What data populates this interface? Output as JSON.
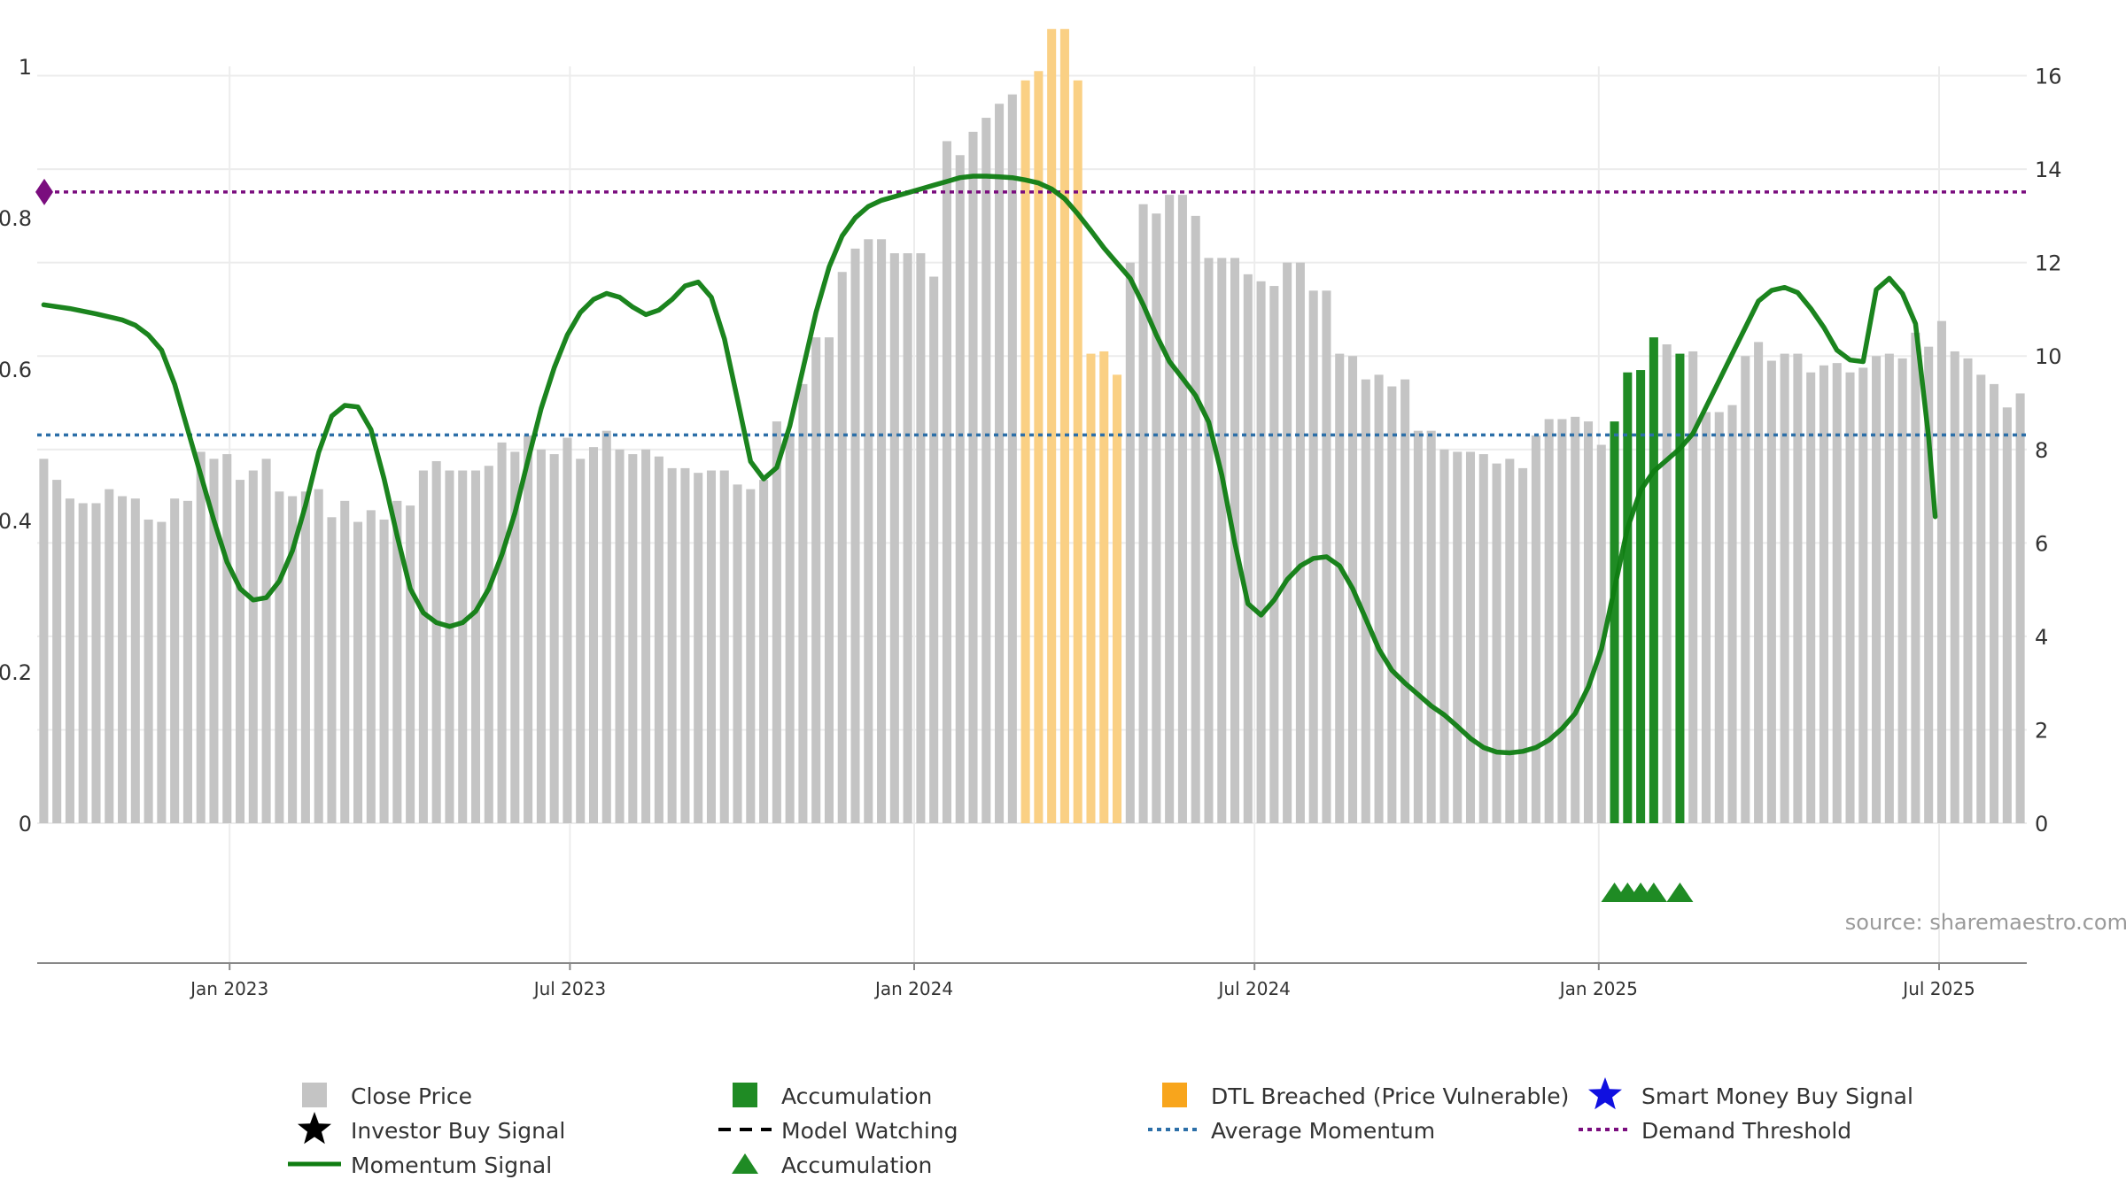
{
  "chart_data": {
    "type": "bar",
    "source": "source: sharemaestro.com",
    "left_axis": {
      "ylim": [
        0,
        1
      ],
      "ticks": [
        0,
        0.2,
        0.4,
        0.6,
        0.8,
        1
      ],
      "tick_labels": [
        "0",
        "0.2",
        "0.4",
        "0.6",
        "0.8",
        "1"
      ]
    },
    "right_axis": {
      "ylim": [
        0,
        16.2
      ],
      "ticks": [
        0,
        2,
        4,
        6,
        8,
        10,
        12,
        14,
        16
      ],
      "tick_labels": [
        "0",
        "2",
        "4",
        "6",
        "8",
        "10",
        "12",
        "14",
        "16"
      ]
    },
    "x_axis": {
      "ticks": [
        14.2,
        40.2,
        66.5,
        92.5,
        118.8,
        144.8
      ],
      "tick_labels": [
        "Jan 2023",
        "Jul 2023",
        "Jan 2024",
        "Jul 2024",
        "Jan 2025",
        "Jul 2025"
      ]
    },
    "series": [
      {
        "name": "Close Price",
        "kind": "bar",
        "axis": "right",
        "values": [
          7.8,
          7.35,
          6.95,
          6.85,
          6.85,
          7.15,
          7.0,
          6.95,
          6.5,
          6.45,
          6.95,
          6.9,
          7.95,
          7.8,
          7.9,
          7.35,
          7.55,
          7.8,
          7.1,
          7.0,
          7.1,
          7.15,
          6.55,
          6.9,
          6.45,
          6.7,
          6.5,
          6.9,
          6.8,
          7.55,
          7.75,
          7.55,
          7.55,
          7.55,
          7.65,
          8.15,
          7.95,
          8.3,
          8.0,
          7.9,
          8.25,
          7.8,
          8.05,
          8.4,
          8.0,
          7.9,
          8.0,
          7.85,
          7.6,
          7.6,
          7.5,
          7.55,
          7.55,
          7.25,
          7.15,
          7.35,
          8.6,
          8.3,
          9.4,
          10.4,
          10.4,
          11.8,
          12.3,
          12.5,
          12.5,
          12.2,
          12.2,
          12.2,
          11.7,
          14.6,
          14.3,
          14.8,
          15.1,
          15.4,
          15.6,
          15.9,
          16.1,
          17.0,
          17.0,
          15.9,
          10.05,
          10.1,
          9.6,
          12.0,
          13.25,
          13.05,
          13.45,
          13.45,
          13.0,
          12.1,
          12.1,
          12.1,
          11.75,
          11.6,
          11.5,
          12.0,
          12.0,
          11.4,
          11.4,
          10.05,
          10.0,
          9.5,
          9.6,
          9.35,
          9.5,
          8.4,
          8.4,
          8.0,
          7.95,
          7.95,
          7.9,
          7.7,
          7.8,
          7.6,
          8.3,
          8.65,
          8.65,
          8.7,
          8.6,
          8.1,
          8.6,
          9.65,
          9.7,
          10.4,
          10.25,
          10.05,
          10.1,
          8.8,
          8.8,
          8.95,
          10.0,
          10.3,
          9.9,
          10.05,
          10.05,
          9.65,
          9.8,
          9.85,
          9.65,
          9.75,
          10.0,
          10.05,
          9.95,
          10.5,
          10.2,
          10.75,
          10.1,
          9.95,
          9.6,
          9.4,
          8.9,
          9.2
        ],
        "highlights": {
          "Accumulation": [
            120,
            121,
            122,
            123,
            125
          ],
          "DTL Breached (Price Vulnerable)": [
            75,
            76,
            77,
            78,
            79,
            80,
            81,
            82
          ]
        }
      },
      {
        "name": "Momentum Signal",
        "kind": "line",
        "axis": "left",
        "points": [
          [
            0,
            0.685
          ],
          [
            2,
            0.68
          ],
          [
            4,
            0.673
          ],
          [
            6,
            0.665
          ],
          [
            7,
            0.658
          ],
          [
            8,
            0.645
          ],
          [
            9,
            0.625
          ],
          [
            10,
            0.58
          ],
          [
            11,
            0.52
          ],
          [
            12,
            0.46
          ],
          [
            13,
            0.4
          ],
          [
            14,
            0.345
          ],
          [
            15,
            0.31
          ],
          [
            16,
            0.295
          ],
          [
            17,
            0.298
          ],
          [
            18,
            0.32
          ],
          [
            19,
            0.36
          ],
          [
            20,
            0.42
          ],
          [
            21,
            0.49
          ],
          [
            22,
            0.538
          ],
          [
            23,
            0.552
          ],
          [
            24,
            0.55
          ],
          [
            25,
            0.52
          ],
          [
            26,
            0.455
          ],
          [
            27,
            0.38
          ],
          [
            28,
            0.31
          ],
          [
            29,
            0.278
          ],
          [
            30,
            0.265
          ],
          [
            31,
            0.26
          ],
          [
            32,
            0.265
          ],
          [
            33,
            0.28
          ],
          [
            34,
            0.31
          ],
          [
            35,
            0.355
          ],
          [
            36,
            0.41
          ],
          [
            37,
            0.48
          ],
          [
            38,
            0.548
          ],
          [
            39,
            0.602
          ],
          [
            40,
            0.645
          ],
          [
            41,
            0.675
          ],
          [
            42,
            0.692
          ],
          [
            43,
            0.7
          ],
          [
            44,
            0.695
          ],
          [
            45,
            0.682
          ],
          [
            46,
            0.672
          ],
          [
            47,
            0.678
          ],
          [
            48,
            0.692
          ],
          [
            49,
            0.71
          ],
          [
            50,
            0.715
          ],
          [
            51,
            0.695
          ],
          [
            52,
            0.64
          ],
          [
            53,
            0.56
          ],
          [
            54,
            0.478
          ],
          [
            55,
            0.455
          ],
          [
            56,
            0.47
          ],
          [
            57,
            0.525
          ],
          [
            58,
            0.6
          ],
          [
            59,
            0.675
          ],
          [
            60,
            0.735
          ],
          [
            61,
            0.776
          ],
          [
            62,
            0.8
          ],
          [
            63,
            0.815
          ],
          [
            64,
            0.823
          ],
          [
            65,
            0.828
          ],
          [
            66,
            0.833
          ],
          [
            67,
            0.838
          ],
          [
            68,
            0.843
          ],
          [
            69,
            0.848
          ],
          [
            70,
            0.853
          ],
          [
            71,
            0.855
          ],
          [
            72,
            0.855
          ],
          [
            73,
            0.854
          ],
          [
            74,
            0.853
          ],
          [
            75,
            0.85
          ],
          [
            76,
            0.846
          ],
          [
            77,
            0.838
          ],
          [
            78,
            0.825
          ],
          [
            79,
            0.805
          ],
          [
            80,
            0.783
          ],
          [
            81,
            0.76
          ],
          [
            82,
            0.74
          ],
          [
            83,
            0.72
          ],
          [
            84,
            0.685
          ],
          [
            85,
            0.645
          ],
          [
            86,
            0.61
          ],
          [
            87,
            0.588
          ],
          [
            88,
            0.565
          ],
          [
            89,
            0.53
          ],
          [
            90,
            0.46
          ],
          [
            91,
            0.37
          ],
          [
            92,
            0.29
          ],
          [
            93,
            0.275
          ],
          [
            94,
            0.295
          ],
          [
            95,
            0.322
          ],
          [
            96,
            0.34
          ],
          [
            97,
            0.35
          ],
          [
            98,
            0.352
          ],
          [
            99,
            0.34
          ],
          [
            100,
            0.31
          ],
          [
            101,
            0.27
          ],
          [
            102,
            0.23
          ],
          [
            103,
            0.202
          ],
          [
            104,
            0.185
          ],
          [
            105,
            0.17
          ],
          [
            106,
            0.155
          ],
          [
            107,
            0.143
          ],
          [
            108,
            0.128
          ],
          [
            109,
            0.112
          ],
          [
            110,
            0.1
          ],
          [
            111,
            0.094
          ],
          [
            112,
            0.093
          ],
          [
            113,
            0.095
          ],
          [
            114,
            0.1
          ],
          [
            115,
            0.11
          ],
          [
            116,
            0.125
          ],
          [
            117,
            0.145
          ],
          [
            118,
            0.18
          ],
          [
            119,
            0.23
          ],
          [
            120,
            0.31
          ],
          [
            121,
            0.39
          ],
          [
            122,
            0.44
          ],
          [
            123,
            0.465
          ],
          [
            124,
            0.48
          ],
          [
            125,
            0.495
          ],
          [
            126,
            0.515
          ],
          [
            127,
            0.55
          ],
          [
            128,
            0.585
          ],
          [
            129,
            0.62
          ],
          [
            130,
            0.655
          ],
          [
            131,
            0.69
          ],
          [
            132,
            0.704
          ],
          [
            133,
            0.708
          ],
          [
            134,
            0.701
          ],
          [
            135,
            0.68
          ],
          [
            136,
            0.655
          ],
          [
            137,
            0.625
          ],
          [
            138,
            0.612
          ],
          [
            139,
            0.61
          ],
          [
            140,
            0.705
          ],
          [
            141,
            0.72
          ],
          [
            142,
            0.7
          ],
          [
            143,
            0.66
          ],
          [
            144,
            0.51
          ],
          [
            144.5,
            0.405
          ]
        ]
      },
      {
        "name": "Average Momentum",
        "kind": "hline",
        "axis": "left",
        "value": 0.513
      },
      {
        "name": "Demand Threshold",
        "kind": "hline",
        "axis": "left",
        "value": 0.834
      },
      {
        "name": "Accumulation",
        "kind": "marker",
        "marker": "triangle",
        "x": [
          120,
          121,
          122,
          123,
          125
        ]
      }
    ],
    "legend": [
      "Close Price",
      "Accumulation",
      "DTL Breached (Price Vulnerable)",
      "Smart Money Buy Signal",
      "Investor Buy Signal",
      "Model Watching",
      "Average Momentum",
      "Demand Threshold",
      "Momentum Signal",
      "Accumulation"
    ],
    "legend_position": "bottom",
    "colors": {
      "close_price": "#c4c4c4",
      "accumulation": "#1f8b24",
      "dtl": "#fad084",
      "dtl_legend": "#f8a51c",
      "momentum": "#0f7d12",
      "average": "#2c6fa8",
      "threshold": "#7a0d7e",
      "smart_money": "#1010e0",
      "investor": "#000000",
      "grid": "#ececec",
      "axis": "#888888"
    },
    "legend_icons": [
      "square",
      "square",
      "square",
      "star",
      "star",
      "dashed-line",
      "dotted-line",
      "dotted-line",
      "line",
      "triangle"
    ]
  }
}
